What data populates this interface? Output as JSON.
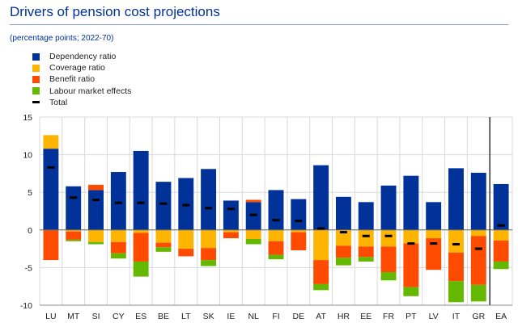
{
  "chart_data": {
    "type": "bar",
    "stacked": true,
    "title": "Drivers of pension cost projections",
    "subtitle": "(percentage points; 2022-70)",
    "ylim": [
      -10,
      15
    ],
    "yticks": [
      15,
      10,
      5,
      0,
      -5,
      -10
    ],
    "grid": true,
    "legend_position": "top-left",
    "categories": [
      "LU",
      "MT",
      "SI",
      "CY",
      "ES",
      "BE",
      "LT",
      "SK",
      "IE",
      "NL",
      "FI",
      "DE",
      "AT",
      "HR",
      "EE",
      "FR",
      "PT",
      "LV",
      "IT",
      "GR",
      "EA"
    ],
    "series": [
      {
        "name": "Dependency ratio",
        "color": "#003299",
        "values": [
          10.8,
          5.8,
          5.3,
          7.7,
          10.5,
          6.4,
          6.9,
          8.1,
          3.9,
          3.7,
          5.3,
          4.1,
          8.6,
          4.4,
          3.7,
          5.9,
          7.2,
          3.7,
          8.2,
          7.6,
          6.1
        ]
      },
      {
        "name": "Coverage ratio",
        "color": "#ffb400",
        "values": [
          1.8,
          -0.2,
          -1.6,
          -1.6,
          -0.4,
          -1.7,
          -2.5,
          -2.4,
          -0.3,
          -1.2,
          -1.5,
          -0.3,
          -4.0,
          -2.1,
          -2.2,
          -2.2,
          -1.8,
          -1.1,
          -3.0,
          -0.8,
          -1.4
        ]
      },
      {
        "name": "Benefit ratio",
        "color": "#ff4b00",
        "values": [
          -4.0,
          -1.1,
          0.7,
          -1.5,
          -3.8,
          -0.6,
          -1.0,
          -1.6,
          -0.8,
          0.3,
          -1.8,
          -2.4,
          -3.2,
          -1.6,
          -1.4,
          -3.4,
          -5.8,
          -4.2,
          -3.8,
          -6.5,
          -2.8
        ]
      },
      {
        "name": "Labour market effects",
        "color": "#65b800",
        "values": [
          0.0,
          -0.2,
          -0.3,
          -0.7,
          -2.0,
          -0.6,
          0.0,
          -0.8,
          0.0,
          -0.7,
          -0.6,
          0.0,
          -0.8,
          -1.0,
          -0.6,
          -1.1,
          -1.2,
          0.0,
          -2.8,
          -2.2,
          -1.0
        ]
      },
      {
        "name": "Total",
        "color": "#000000",
        "marker": "dash",
        "values": [
          8.3,
          4.3,
          4.0,
          3.6,
          3.6,
          3.5,
          3.3,
          2.9,
          2.8,
          2.0,
          1.3,
          1.2,
          0.2,
          -0.3,
          -0.8,
          -0.8,
          -1.8,
          -1.8,
          -1.9,
          -2.5,
          0.6
        ]
      }
    ]
  }
}
